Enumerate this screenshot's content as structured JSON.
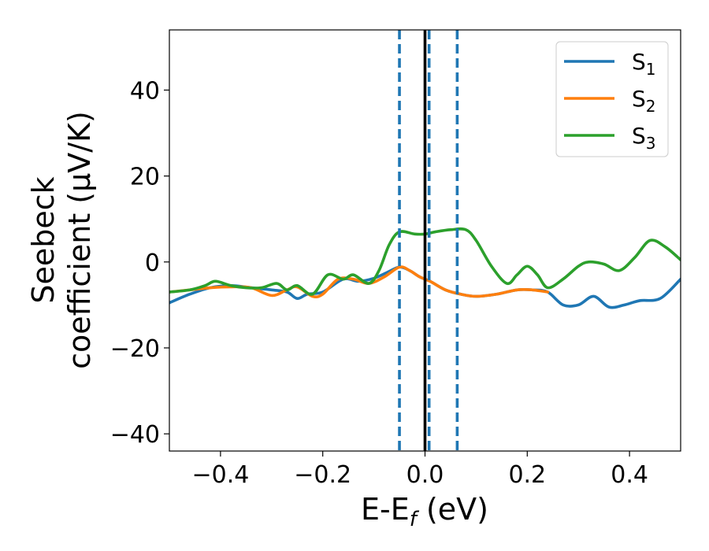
{
  "chart_data": {
    "type": "line",
    "xlabel": "E-E",
    "xlabel_sub": "f",
    "xlabel_unit": " (eV)",
    "ylabel_line1": "Seebeck",
    "ylabel_line2": "coefficient  (μV/K)",
    "xlim": [
      -0.5,
      0.5
    ],
    "ylim": [
      -44,
      54
    ],
    "x_ticks": [
      -0.4,
      -0.2,
      0.0,
      0.2,
      0.4
    ],
    "x_tick_labels": [
      "−0.4",
      "−0.2",
      "0.0",
      "0.2",
      "0.4"
    ],
    "y_ticks": [
      -40,
      -20,
      0,
      20,
      40
    ],
    "y_tick_labels": [
      "−40",
      "−20",
      "0",
      "20",
      "40"
    ],
    "grid": false,
    "legend_position": "top-right",
    "series": [
      {
        "name": "S",
        "name_sub": "1",
        "color": "#1f77b4",
        "points": [
          [
            -0.5,
            -9.5
          ],
          [
            -0.46,
            -7.5
          ],
          [
            -0.42,
            -6.0
          ],
          [
            -0.38,
            -5.5
          ],
          [
            -0.34,
            -6.0
          ],
          [
            -0.3,
            -6.5
          ],
          [
            -0.27,
            -7.0
          ],
          [
            -0.25,
            -8.5
          ],
          [
            -0.23,
            -7.5
          ],
          [
            -0.2,
            -7.0
          ],
          [
            -0.16,
            -4.0
          ],
          [
            -0.13,
            -4.5
          ],
          [
            -0.1,
            -3.8
          ],
          [
            -0.075,
            -2.5
          ],
          [
            -0.05,
            -1.2
          ],
          [
            -0.03,
            -2.0
          ],
          [
            -0.01,
            -3.5
          ],
          [
            0.01,
            -4.5
          ],
          [
            0.04,
            -6.5
          ],
          [
            0.07,
            -7.5
          ],
          [
            0.1,
            -8.0
          ],
          [
            0.14,
            -7.5
          ],
          [
            0.18,
            -6.5
          ],
          [
            0.21,
            -6.5
          ],
          [
            0.24,
            -7.0
          ],
          [
            0.27,
            -10.0
          ],
          [
            0.3,
            -10.0
          ],
          [
            0.33,
            -8.0
          ],
          [
            0.36,
            -10.5
          ],
          [
            0.39,
            -10.0
          ],
          [
            0.42,
            -9.0
          ],
          [
            0.46,
            -8.5
          ],
          [
            0.5,
            -4.0
          ]
        ]
      },
      {
        "name": "S",
        "name_sub": "2",
        "color": "#ff7f0e",
        "points": [
          [
            -0.5,
            -7.0
          ],
          [
            -0.46,
            -6.5
          ],
          [
            -0.42,
            -6.0
          ],
          [
            -0.38,
            -5.8
          ],
          [
            -0.34,
            -6.0
          ],
          [
            -0.3,
            -7.8
          ],
          [
            -0.27,
            -6.5
          ],
          [
            -0.25,
            -5.8
          ],
          [
            -0.22,
            -8.0
          ],
          [
            -0.2,
            -7.5
          ],
          [
            -0.17,
            -4.0
          ],
          [
            -0.14,
            -4.0
          ],
          [
            -0.11,
            -5.0
          ],
          [
            -0.08,
            -3.5
          ],
          [
            -0.05,
            -1.2
          ],
          [
            -0.03,
            -2.0
          ],
          [
            -0.01,
            -3.5
          ],
          [
            0.01,
            -4.5
          ],
          [
            0.04,
            -6.5
          ],
          [
            0.07,
            -7.5
          ],
          [
            0.1,
            -8.0
          ],
          [
            0.14,
            -7.5
          ],
          [
            0.18,
            -6.5
          ],
          [
            0.21,
            -6.5
          ],
          [
            0.24,
            -7.0
          ]
        ]
      },
      {
        "name": "S",
        "name_sub": "3",
        "color": "#2ca02c",
        "points": [
          [
            -0.5,
            -7.0
          ],
          [
            -0.46,
            -6.5
          ],
          [
            -0.43,
            -5.5
          ],
          [
            -0.41,
            -4.5
          ],
          [
            -0.38,
            -5.5
          ],
          [
            -0.35,
            -6.0
          ],
          [
            -0.32,
            -6.0
          ],
          [
            -0.29,
            -5.0
          ],
          [
            -0.27,
            -6.5
          ],
          [
            -0.25,
            -5.5
          ],
          [
            -0.22,
            -7.5
          ],
          [
            -0.19,
            -3.0
          ],
          [
            -0.16,
            -4.0
          ],
          [
            -0.14,
            -3.0
          ],
          [
            -0.11,
            -5.0
          ],
          [
            -0.09,
            -2.0
          ],
          [
            -0.07,
            4.0
          ],
          [
            -0.05,
            7.0
          ],
          [
            -0.02,
            6.5
          ],
          [
            0.0,
            6.5
          ],
          [
            0.02,
            7.0
          ],
          [
            0.05,
            7.5
          ],
          [
            0.08,
            7.5
          ],
          [
            0.1,
            5.0
          ],
          [
            0.13,
            -1.0
          ],
          [
            0.16,
            -5.0
          ],
          [
            0.18,
            -3.0
          ],
          [
            0.2,
            -1.0
          ],
          [
            0.22,
            -3.0
          ],
          [
            0.24,
            -6.0
          ],
          [
            0.27,
            -4.0
          ],
          [
            0.3,
            -1.0
          ],
          [
            0.32,
            0.0
          ],
          [
            0.35,
            -0.5
          ],
          [
            0.38,
            -2.0
          ],
          [
            0.41,
            1.0
          ],
          [
            0.44,
            5.0
          ],
          [
            0.47,
            3.5
          ],
          [
            0.5,
            0.5
          ]
        ]
      }
    ],
    "vertical_lines": [
      {
        "x": -0.05,
        "style": "dashed",
        "color": "#1f77b4"
      },
      {
        "x": 0.008,
        "style": "dashed",
        "color": "#1f77b4"
      },
      {
        "x": 0.063,
        "style": "dashed",
        "color": "#1f77b4"
      },
      {
        "x": 0.0,
        "style": "solid",
        "color": "#000000"
      }
    ]
  }
}
